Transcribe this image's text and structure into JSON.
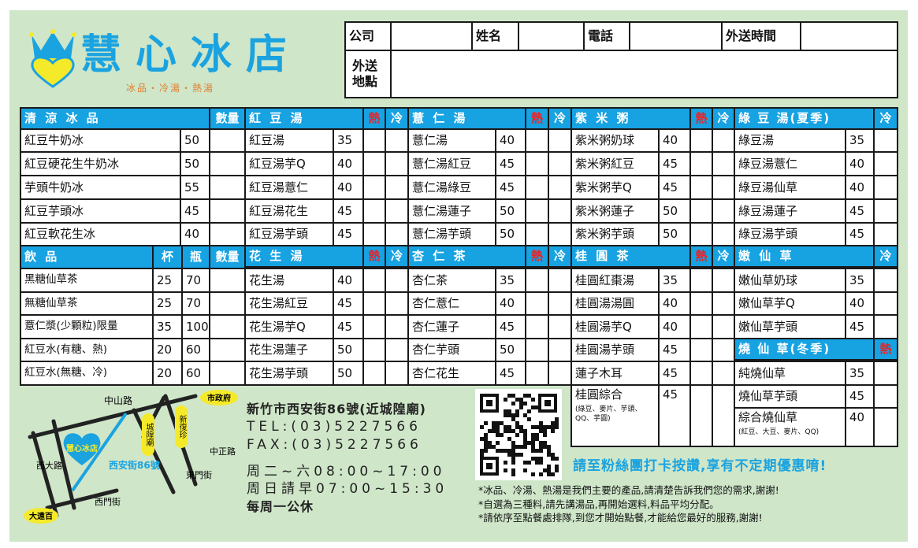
{
  "brand": {
    "name": "慧心冰店",
    "tagline": "冰品・冷湯・熱湯",
    "logo_icon": "crown-heart-icon",
    "color": "#1ba3e0"
  },
  "form": {
    "company": "公司",
    "name": "姓名",
    "phone": "電話",
    "delivery_time": "外送時間",
    "delivery_place": "外送地點"
  },
  "colors": {
    "header_bg": "#17a2e2",
    "hot": "#e2252b",
    "panel": "#cfe6c9"
  },
  "menu": {
    "ice": {
      "title": "清 涼 冰 品",
      "qty": "數量",
      "items": [
        {
          "name": "紅豆牛奶冰",
          "price": "50"
        },
        {
          "name": "紅豆硬花生牛奶冰",
          "price": "50"
        },
        {
          "name": "芋頭牛奶冰",
          "price": "55"
        },
        {
          "name": "紅豆芋頭冰",
          "price": "45"
        },
        {
          "name": "紅豆軟花生冰",
          "price": "40"
        }
      ]
    },
    "drinks": {
      "title": "飲 品",
      "cup": "杯",
      "bottle": "瓶",
      "qty": "數量",
      "items": [
        {
          "name": "黑糖仙草茶",
          "cup": "25",
          "bottle": "70"
        },
        {
          "name": "無糖仙草茶",
          "cup": "25",
          "bottle": "70"
        },
        {
          "name": "薏仁漿(少顆粒)限量",
          "cup": "35",
          "bottle": "100"
        },
        {
          "name": "紅豆水(有糖、熱)",
          "cup": "20",
          "bottle": "60"
        },
        {
          "name": "紅豆水(無糖、冷)",
          "cup": "20",
          "bottle": "60"
        }
      ]
    },
    "red_bean": {
      "title": "紅 豆 湯",
      "hot": "熱",
      "cold": "冷",
      "items": [
        {
          "name": "紅豆湯",
          "price": "35"
        },
        {
          "name": "紅豆湯芋Q",
          "price": "40"
        },
        {
          "name": "紅豆湯薏仁",
          "price": "40"
        },
        {
          "name": "紅豆湯花生",
          "price": "45"
        },
        {
          "name": "紅豆湯芋頭",
          "price": "45"
        }
      ]
    },
    "peanut": {
      "title": "花 生 湯",
      "hot": "熱",
      "cold": "冷",
      "items": [
        {
          "name": "花生湯",
          "price": "40"
        },
        {
          "name": "花生湯紅豆",
          "price": "45"
        },
        {
          "name": "花生湯芋Q",
          "price": "45"
        },
        {
          "name": "花生湯蓮子",
          "price": "50"
        },
        {
          "name": "花生湯芋頭",
          "price": "50"
        }
      ]
    },
    "yiren": {
      "title": "薏 仁 湯",
      "hot": "熱",
      "cold": "冷",
      "items": [
        {
          "name": "薏仁湯",
          "price": "40"
        },
        {
          "name": "薏仁湯紅豆",
          "price": "45"
        },
        {
          "name": "薏仁湯綠豆",
          "price": "45"
        },
        {
          "name": "薏仁湯蓮子",
          "price": "50"
        },
        {
          "name": "薏仁湯芋頭",
          "price": "50"
        }
      ]
    },
    "almond": {
      "title": "杏 仁 茶",
      "hot": "熱",
      "cold": "冷",
      "items": [
        {
          "name": "杏仁茶",
          "price": "35"
        },
        {
          "name": "杏仁薏仁",
          "price": "40"
        },
        {
          "name": "杏仁蓮子",
          "price": "45"
        },
        {
          "name": "杏仁芋頭",
          "price": "50"
        },
        {
          "name": "杏仁花生",
          "price": "45"
        }
      ]
    },
    "purple_rice": {
      "title": "紫 米 粥",
      "hot": "熱",
      "cold": "冷",
      "items": [
        {
          "name": "紫米粥奶球",
          "price": "40"
        },
        {
          "name": "紫米粥紅豆",
          "price": "45"
        },
        {
          "name": "紫米粥芋Q",
          "price": "45"
        },
        {
          "name": "紫米粥蓮子",
          "price": "50"
        },
        {
          "name": "紫米粥芋頭",
          "price": "50"
        }
      ]
    },
    "longan": {
      "title": "桂 圓 茶",
      "hot": "熱",
      "cold": "冷",
      "items": [
        {
          "name": "桂圓紅棗湯",
          "price": "35"
        },
        {
          "name": "桂圓湯湯圓",
          "price": "40"
        },
        {
          "name": "桂圓湯芋Q",
          "price": "40"
        },
        {
          "name": "桂圓湯芋頭",
          "price": "45"
        },
        {
          "name": "蓮子木耳",
          "price": "45"
        },
        {
          "name": "桂圓綜合",
          "price": "45",
          "note": "(綠豆、麥片、芋頭、QQ、芋圓)"
        }
      ]
    },
    "mung_bean": {
      "title": "綠 豆 湯(夏季)",
      "cold": "冷",
      "items": [
        {
          "name": "綠豆湯",
          "price": "35"
        },
        {
          "name": "綠豆湯薏仁",
          "price": "40"
        },
        {
          "name": "綠豆湯仙草",
          "price": "40"
        },
        {
          "name": "綠豆湯蓮子",
          "price": "45"
        },
        {
          "name": "綠豆湯芋頭",
          "price": "45"
        }
      ]
    },
    "grass_jelly": {
      "title": "嫩 仙 草",
      "cold": "冷",
      "items": [
        {
          "name": "嫩仙草奶球",
          "price": "35"
        },
        {
          "name": "嫩仙草芋Q",
          "price": "40"
        },
        {
          "name": "嫩仙草芋頭",
          "price": "45"
        }
      ]
    },
    "hot_grass_jelly": {
      "title": "燒 仙 草(冬季)",
      "hot": "熱",
      "items": [
        {
          "name": "純燒仙草",
          "price": "35"
        },
        {
          "name": "燒仙草芋頭",
          "price": "45"
        },
        {
          "name": "綜合燒仙草",
          "price": "40",
          "note": "(紅豆、大豆、麥片、QQ)"
        }
      ]
    }
  },
  "map": {
    "labels": [
      "中山路",
      "市政府",
      "城隍廟",
      "新復珍",
      "東門街",
      "中正路",
      "西大路",
      "西門街",
      "大遠百"
    ],
    "shop": "慧心冰店",
    "street": "西安街86號"
  },
  "contact": {
    "address": "新竹市西安街86號(近城隍廟)",
    "tel": "TEL:(03)5227566",
    "fax": "FAX:(03)5227566",
    "hours1": "周二~六08:00~17:00",
    "hours2": "周日請早07:00~15:30",
    "closed": "每周一公休"
  },
  "promo": "請至粉絲團打卡按讚,享有不定期優惠唷!",
  "notes": [
    "*冰品、冷湯、熱湯是我們主要的產品,請清楚告訴我們您的需求,謝謝!",
    "*自選為三種料,請先講湯品,再開始選料,料品平均分配。",
    "*請依序至點餐處排隊,到您才開始點餐,才能給您最好的服務,謝謝!"
  ]
}
